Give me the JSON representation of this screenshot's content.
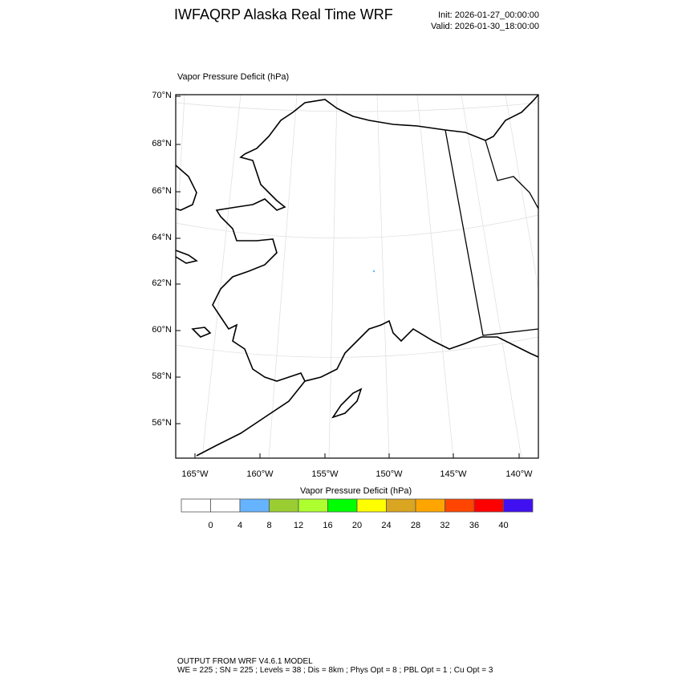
{
  "header": {
    "title": "IWFAQRP Alaska Real Time WRF",
    "init": "Init: 2026-01-27_00:00:00",
    "valid": "Valid: 2026-01-30_18:00:00"
  },
  "chart_data": {
    "type": "heatmap",
    "title": "Vapor Pressure Deficit   (hPa)",
    "field_name": "Vapor Pressure Deficit",
    "units": "(hPa)",
    "ytick_labels": [
      "70°N",
      "68°N",
      "66°N",
      "64°N",
      "62°N",
      "60°N",
      "58°N",
      "56°N"
    ],
    "xtick_labels": [
      "165°W",
      "160°W",
      "155°W",
      "150°W",
      "145°W",
      "140°W"
    ],
    "colorbar": {
      "title": "Vapor Pressure Deficit  (hPa)",
      "levels": [
        "0",
        "4",
        "8",
        "12",
        "16",
        "20",
        "24",
        "28",
        "32",
        "36",
        "40"
      ],
      "colors": [
        "#ffffff",
        "#ffffff",
        "#66b3ff",
        "#9acd32",
        "#adff2f",
        "#00ff00",
        "#ffff00",
        "#daa520",
        "#ffa500",
        "#ff4500",
        "#ff0000",
        "#4010f0"
      ]
    },
    "notes": "Field is nearly all below 0-4 hPa (white); a single small 4-8 hPa point near 62.5°N 151°W",
    "grid": true
  },
  "footer": {
    "line1": "OUTPUT FROM WRF V4.6.1 MODEL",
    "line2": "WE = 225 ; SN = 225 ; Levels = 38 ; Dis = 8km ; Phys Opt = 8 ; PBL Opt = 1 ; Cu Opt = 3"
  }
}
